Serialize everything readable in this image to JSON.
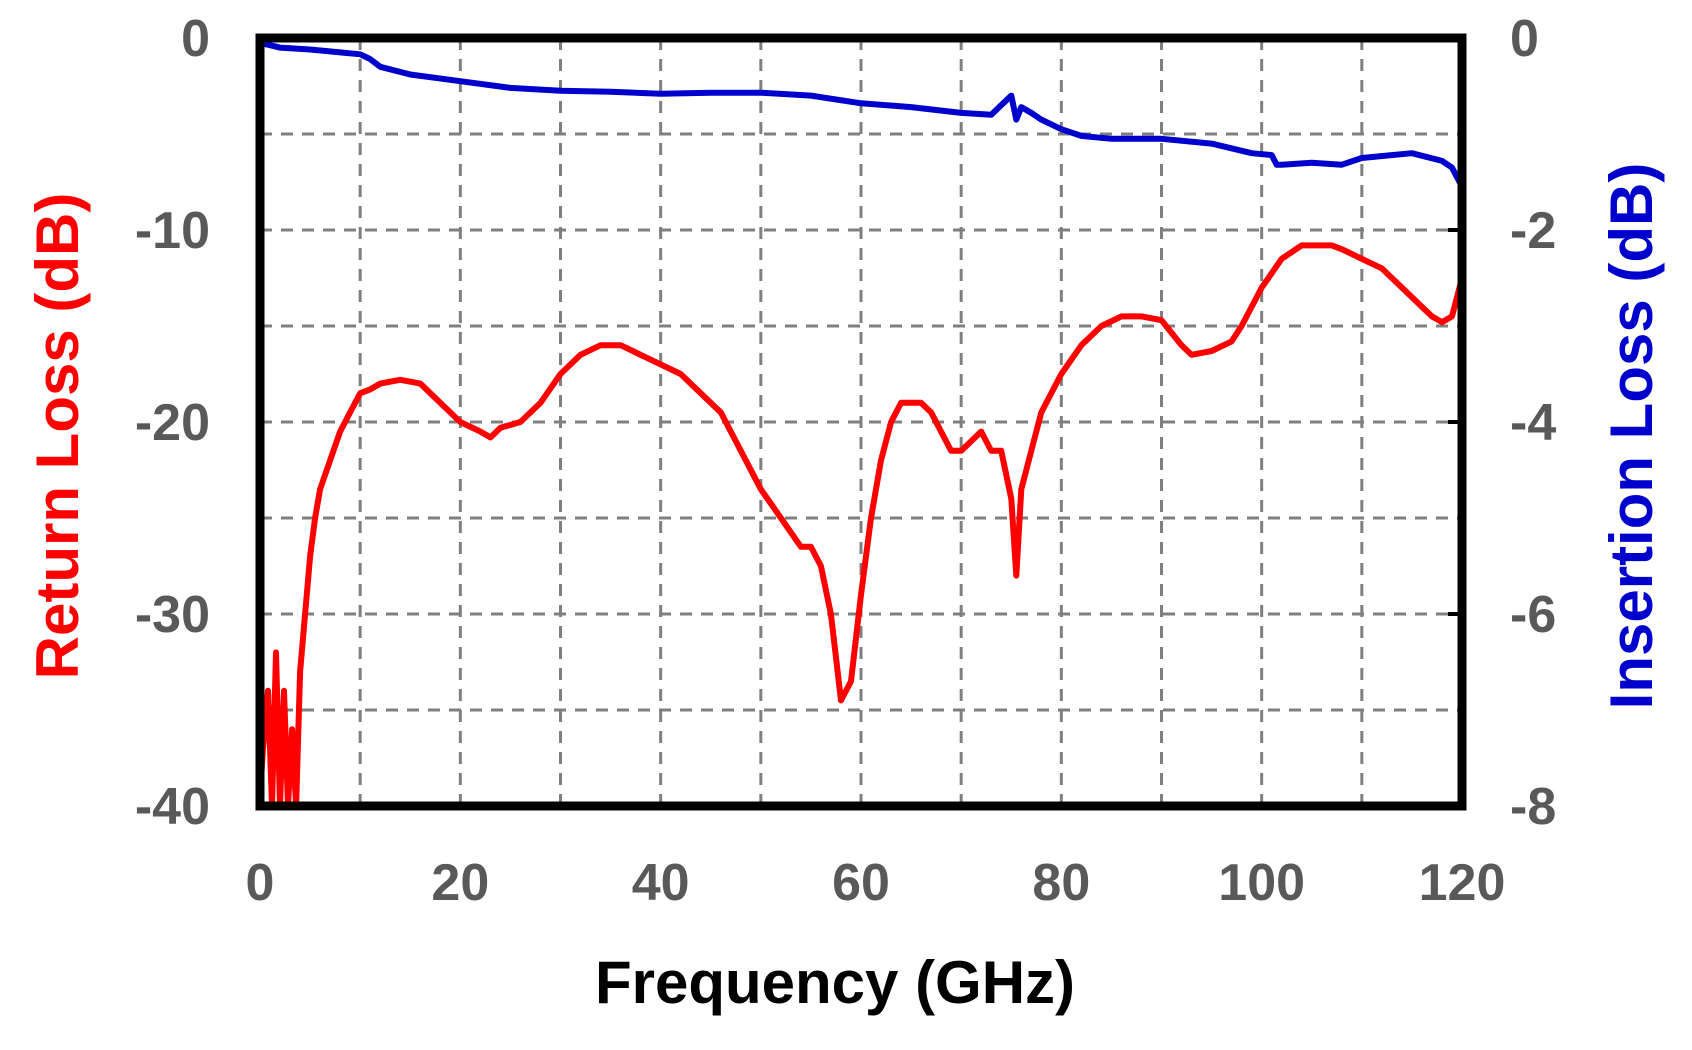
{
  "chart_data": {
    "type": "line",
    "title": "",
    "xlabel": "Frequency (GHz)",
    "ylabel": "Return Loss (dB)",
    "y2label": "Insertion Loss (dB)",
    "xlim": [
      0,
      120
    ],
    "ylim": [
      -40,
      0
    ],
    "y2lim": [
      -8,
      0
    ],
    "x_ticks": [
      0,
      20,
      40,
      60,
      80,
      100,
      120
    ],
    "y_ticks": [
      0,
      -10,
      -20,
      -30,
      -40
    ],
    "y2_ticks": [
      0,
      -2,
      -4,
      -6,
      -8
    ],
    "x_tick_labels": [
      "0",
      "20",
      "40",
      "60",
      "80",
      "100",
      "120"
    ],
    "y_tick_labels": [
      "0",
      "-10",
      "-20",
      "-30",
      "-40"
    ],
    "y2_tick_labels": [
      "0",
      "-2",
      "-4",
      "-6",
      "-8"
    ],
    "grid": true,
    "colors": {
      "return_loss": "#ff0000",
      "insertion_loss": "#0000cc",
      "frame": "#000000",
      "grid": "#7f7f7f",
      "tick_text": "#595959"
    },
    "series": [
      {
        "axis": "left",
        "color": "#ff0000",
        "x": [
          0,
          0.3,
          0.8,
          1.2,
          1.6,
          2.0,
          2.4,
          2.8,
          3.2,
          3.6,
          4.0,
          4.5,
          5.0,
          5.5,
          6.0,
          7.0,
          8.0,
          9.0,
          10.0,
          11.0,
          12.0,
          14.0,
          16.0,
          18.0,
          20.0,
          22.0,
          23.0,
          24.0,
          26.0,
          28.0,
          30.0,
          32.0,
          34.0,
          36.0,
          38.0,
          40.0,
          42.0,
          44.0,
          46.0,
          48.0,
          50.0,
          52.0,
          54.0,
          55.0,
          56.0,
          57.0,
          58.0,
          59.0,
          60.0,
          61.0,
          62.0,
          63.0,
          64.0,
          65.0,
          66.0,
          67.0,
          68.0,
          69.0,
          70.0,
          71.0,
          72.0,
          73.0,
          74.0,
          75.0,
          75.5,
          76.0,
          77.0,
          78.0,
          79.0,
          80.0,
          82.0,
          84.0,
          86.0,
          88.0,
          90.0,
          92.0,
          93.0,
          95.0,
          97.0,
          98.0,
          100.0,
          102.0,
          104.0,
          106.0,
          107.0,
          108.0,
          110.0,
          112.0,
          114.0,
          116.0,
          117.0,
          118.0,
          119.0,
          120.0
        ],
        "values": [
          -39.5,
          -37,
          -34,
          -40,
          -32,
          -40,
          -34,
          -40,
          -36,
          -40,
          -33,
          -30,
          -27,
          -25,
          -23.5,
          -22,
          -20.5,
          -19.5,
          -18.5,
          -18.3,
          -18.0,
          -17.8,
          -18.0,
          -19.0,
          -20.0,
          -20.5,
          -20.8,
          -20.3,
          -20.0,
          -19.0,
          -17.5,
          -16.5,
          -16.0,
          -16.0,
          -16.5,
          -17.0,
          -17.5,
          -18.5,
          -19.5,
          -21.5,
          -23.5,
          -25.0,
          -26.5,
          -26.5,
          -27.5,
          -30.0,
          -34.5,
          -33.5,
          -29.0,
          -25.0,
          -22.0,
          -20.0,
          -19.0,
          -19.0,
          -19.0,
          -19.5,
          -20.5,
          -21.5,
          -21.5,
          -21.0,
          -20.5,
          -21.5,
          -21.5,
          -24.0,
          -28.0,
          -23.5,
          -21.5,
          -19.5,
          -18.5,
          -17.5,
          -16.0,
          -15.0,
          -14.5,
          -14.5,
          -14.7,
          -16.0,
          -16.5,
          -16.3,
          -15.8,
          -15.0,
          -13.0,
          -11.5,
          -10.8,
          -10.8,
          -10.8,
          -11.0,
          -11.5,
          -12.0,
          -13.0,
          -14.0,
          -14.5,
          -14.8,
          -14.5,
          -12.5
        ]
      },
      {
        "axis": "right",
        "color": "#0000cc",
        "x": [
          0,
          2,
          5,
          8,
          10,
          11,
          12,
          15,
          20,
          25,
          30,
          35,
          40,
          45,
          50,
          55,
          60,
          65,
          70,
          73,
          74,
          75,
          75.5,
          76,
          77,
          78,
          80,
          82,
          85,
          90,
          95,
          99,
          101,
          101.5,
          102,
          105,
          108,
          110,
          115,
          118,
          119,
          120
        ],
        "values": [
          -0.05,
          -0.1,
          -0.12,
          -0.15,
          -0.17,
          -0.22,
          -0.3,
          -0.38,
          -0.45,
          -0.52,
          -0.55,
          -0.56,
          -0.58,
          -0.57,
          -0.57,
          -0.6,
          -0.68,
          -0.72,
          -0.78,
          -0.8,
          -0.7,
          -0.6,
          -0.85,
          -0.72,
          -0.78,
          -0.85,
          -0.95,
          -1.02,
          -1.05,
          -1.05,
          -1.1,
          -1.2,
          -1.22,
          -1.32,
          -1.32,
          -1.3,
          -1.32,
          -1.25,
          -1.2,
          -1.28,
          -1.35,
          -1.55
        ]
      }
    ]
  }
}
